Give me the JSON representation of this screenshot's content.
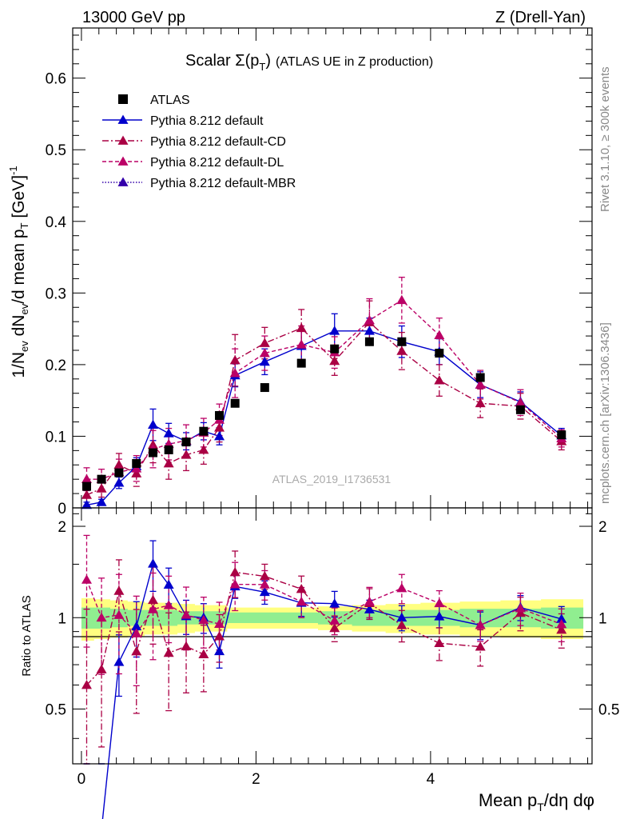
{
  "header": {
    "energy_label": "13000 GeV pp",
    "process_label": "Z (Drell-Yan)"
  },
  "side_labels": {
    "rivet": "Rivet 3.1.10, ≥ 300k events",
    "mcplots": "mcplots.cern.ch [arXiv:1306.3436]"
  },
  "colors": {
    "atlas": "#000000",
    "default": "#0000cc",
    "cd": "#aa0044",
    "dl": "#bb0066",
    "mbr": "#3300aa",
    "band_inner": "#90ee90",
    "band_outer": "#ffff80"
  },
  "chart_data": {
    "type": "scatter",
    "title_main": "Scalar Σ(p",
    "title_sub": "T",
    "title_close": ")",
    "title_rest": "(ATLAS UE in Z production)",
    "watermark": "ATLAS_2019_I1736531",
    "ylabel_main": "1/N",
    "ylabel_sub1": "ev",
    "ylabel_mid": " dN",
    "ylabel_sub2": "ev",
    "ylabel_rest": "/d mean p",
    "ylabel_sub3": "T",
    "ylabel_unit": " [GeV]",
    "ylabel_sup": "-1",
    "ratio_ylabel": "Ratio to ATLAS",
    "xlabel_main": "Mean p",
    "xlabel_sub": "T",
    "xlabel_rest": "/dη dφ",
    "xlim": [
      -0.1,
      5.85
    ],
    "ylim": [
      0,
      0.67
    ],
    "ratio_ylim": [
      0.33,
      2.3
    ],
    "x_ticks": [
      "0",
      "2",
      "4"
    ],
    "y_ticks": [
      "0",
      "0.1",
      "0.2",
      "0.3",
      "0.4",
      "0.5",
      "0.6"
    ],
    "ratio_y_ticks": [
      "0.5",
      "1",
      "2"
    ],
    "x": [
      0.06,
      0.23,
      0.43,
      0.63,
      0.82,
      1.0,
      1.2,
      1.4,
      1.58,
      1.76,
      2.1,
      2.52,
      2.9,
      3.3,
      3.67,
      4.1,
      4.57,
      5.03,
      5.5
    ],
    "series": [
      {
        "name": "ATLAS",
        "style": "data",
        "values": [
          0.03,
          0.04,
          0.049,
          0.062,
          0.077,
          0.081,
          0.092,
          0.107,
          0.129,
          0.146,
          0.168,
          0.202,
          0.222,
          0.232,
          0.232,
          0.216,
          0.182,
          0.137,
          0.102
        ],
        "errors": [
          0.004,
          0.004,
          0.004,
          0.004,
          0.004,
          0.004,
          0.004,
          0.004,
          0.004,
          0.004,
          0.004,
          0.004,
          0.005,
          0.006,
          0.006,
          0.006,
          0.006,
          0.006,
          0.006
        ]
      },
      {
        "name": "Pythia 8.212 default",
        "style": "solid",
        "values": [
          0.004,
          0.008,
          0.035,
          0.058,
          0.116,
          0.104,
          0.093,
          0.107,
          0.1,
          0.185,
          0.204,
          0.226,
          0.247,
          0.247,
          0.232,
          0.218,
          0.172,
          0.148,
          0.101
        ],
        "errors": [
          0.004,
          0.004,
          0.008,
          0.012,
          0.022,
          0.014,
          0.012,
          0.012,
          0.012,
          0.016,
          0.018,
          0.022,
          0.024,
          0.018,
          0.022,
          0.018,
          0.018,
          0.014,
          0.01
        ]
      },
      {
        "name": "Pythia 8.212 default-CD",
        "style": "dashdot",
        "values": [
          0.018,
          0.027,
          0.06,
          0.048,
          0.088,
          0.062,
          0.074,
          0.081,
          0.112,
          0.206,
          0.23,
          0.251,
          0.205,
          0.259,
          0.219,
          0.178,
          0.146,
          0.142,
          0.093
        ],
        "errors": [
          0.014,
          0.012,
          0.016,
          0.018,
          0.025,
          0.022,
          0.022,
          0.02,
          0.02,
          0.036,
          0.022,
          0.026,
          0.02,
          0.03,
          0.026,
          0.022,
          0.02,
          0.018,
          0.012
        ]
      },
      {
        "name": "Pythia 8.212 default-DL",
        "style": "dash",
        "values": [
          0.04,
          0.04,
          0.05,
          0.055,
          0.082,
          0.089,
          0.094,
          0.105,
          0.123,
          0.188,
          0.216,
          0.228,
          0.217,
          0.262,
          0.29,
          0.241,
          0.172,
          0.147,
          0.097
        ],
        "errors": [
          0.016,
          0.014,
          0.018,
          0.018,
          0.026,
          0.022,
          0.022,
          0.02,
          0.022,
          0.034,
          0.024,
          0.026,
          0.022,
          0.03,
          0.032,
          0.024,
          0.02,
          0.018,
          0.012
        ]
      },
      {
        "name": "Pythia 8.212 default-MBR",
        "style": "dotted",
        "values": [],
        "errors": []
      }
    ],
    "ratio_band_inner": [
      0.08,
      0.08,
      0.07,
      0.06,
      0.06,
      0.06,
      0.05,
      0.05,
      0.05,
      0.04,
      0.04,
      0.04,
      0.05,
      0.06,
      0.06,
      0.06,
      0.07,
      0.07,
      0.08
    ],
    "ratio_band_outer": [
      0.16,
      0.15,
      0.14,
      0.13,
      0.12,
      0.12,
      0.11,
      0.1,
      0.1,
      0.08,
      0.08,
      0.08,
      0.09,
      0.1,
      0.11,
      0.12,
      0.13,
      0.14,
      0.15
    ]
  }
}
